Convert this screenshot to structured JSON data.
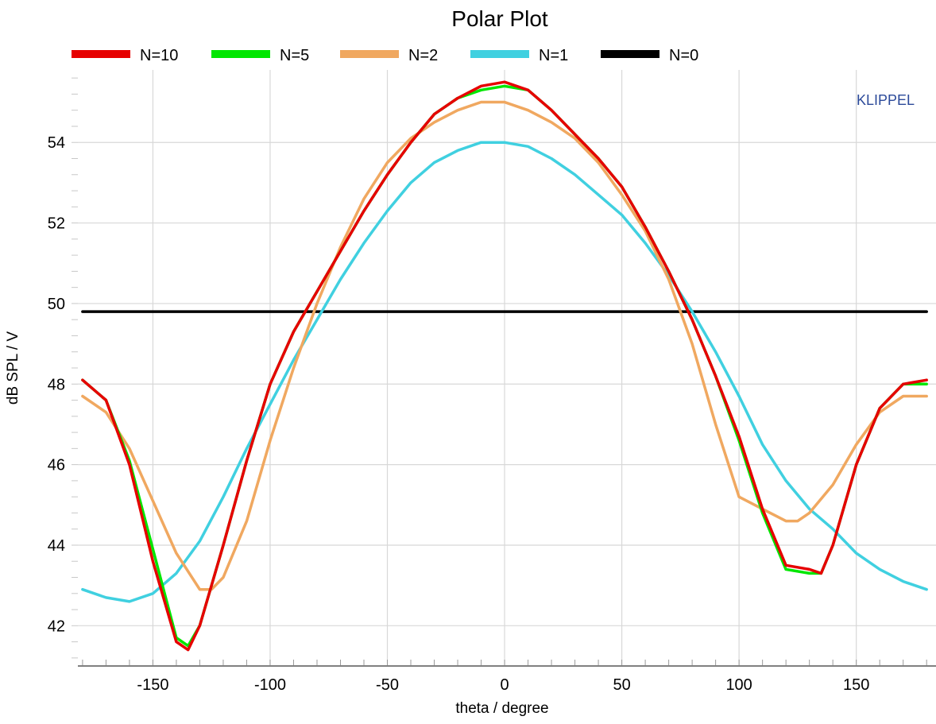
{
  "chart_data": {
    "type": "line",
    "title": "Polar Plot",
    "xlabel": "theta / degree",
    "ylabel": "dB SPL / V",
    "watermark": "KLIPPEL",
    "xlim": [
      -182,
      184
    ],
    "ylim": [
      41.0,
      55.8
    ],
    "xticks": [
      -150,
      -100,
      -50,
      0,
      50,
      100,
      150
    ],
    "xtick_labels": [
      "-150",
      "-100",
      "-50",
      "0",
      "50",
      "100",
      "150"
    ],
    "yticks": [
      42,
      44,
      46,
      48,
      50,
      52,
      54
    ],
    "ytick_labels": [
      "42",
      "44",
      "46",
      "48",
      "50",
      "52",
      "54"
    ],
    "grid": true,
    "legend_position": "top",
    "colors": {
      "N=10": "#e60000",
      "N=5": "#00e600",
      "N=2": "#f0a860",
      "N=1": "#40d0e0",
      "N=0": "#000000"
    },
    "series": [
      {
        "name": "N=10",
        "x": [
          -180,
          -170,
          -160,
          -150,
          -140,
          -135,
          -130,
          -120,
          -110,
          -100,
          -90,
          -80,
          -70,
          -60,
          -50,
          -40,
          -30,
          -20,
          -10,
          0,
          10,
          20,
          30,
          40,
          50,
          60,
          70,
          80,
          90,
          100,
          110,
          120,
          130,
          135,
          140,
          150,
          160,
          170,
          180
        ],
        "y": [
          48.1,
          47.6,
          46.0,
          43.6,
          41.6,
          41.4,
          42.0,
          44.0,
          46.1,
          48.0,
          49.3,
          50.3,
          51.3,
          52.3,
          53.2,
          54.0,
          54.7,
          55.1,
          55.4,
          55.5,
          55.3,
          54.8,
          54.2,
          53.6,
          52.9,
          51.9,
          50.8,
          49.6,
          48.2,
          46.7,
          44.9,
          43.5,
          43.4,
          43.3,
          44.0,
          46.0,
          47.4,
          48.0,
          48.1
        ]
      },
      {
        "name": "N=5",
        "x": [
          -180,
          -170,
          -160,
          -150,
          -140,
          -135,
          -130,
          -120,
          -110,
          -100,
          -90,
          -80,
          -70,
          -60,
          -50,
          -40,
          -30,
          -20,
          -10,
          0,
          10,
          20,
          30,
          40,
          50,
          60,
          70,
          80,
          90,
          100,
          110,
          120,
          130,
          135,
          140,
          150,
          160,
          170,
          180
        ],
        "y": [
          48.1,
          47.6,
          46.1,
          43.9,
          41.7,
          41.5,
          42.0,
          44.0,
          46.1,
          48.0,
          49.3,
          50.3,
          51.3,
          52.3,
          53.2,
          54.0,
          54.7,
          55.1,
          55.3,
          55.4,
          55.3,
          54.8,
          54.2,
          53.6,
          52.9,
          51.9,
          50.8,
          49.6,
          48.2,
          46.6,
          44.8,
          43.4,
          43.3,
          43.3,
          44.0,
          46.0,
          47.4,
          48.0,
          48.0
        ]
      },
      {
        "name": "N=2",
        "x": [
          -180,
          -170,
          -160,
          -150,
          -140,
          -130,
          -125,
          -120,
          -110,
          -100,
          -90,
          -80,
          -70,
          -60,
          -50,
          -40,
          -30,
          -20,
          -10,
          0,
          10,
          20,
          30,
          40,
          50,
          60,
          70,
          80,
          90,
          100,
          110,
          120,
          125,
          130,
          140,
          150,
          160,
          170,
          180
        ],
        "y": [
          47.7,
          47.3,
          46.4,
          45.1,
          43.8,
          42.9,
          42.9,
          43.2,
          44.6,
          46.6,
          48.4,
          50.0,
          51.4,
          52.6,
          53.5,
          54.1,
          54.5,
          54.8,
          55.0,
          55.0,
          54.8,
          54.5,
          54.1,
          53.5,
          52.7,
          51.8,
          50.6,
          49.0,
          47.0,
          45.2,
          44.9,
          44.6,
          44.6,
          44.8,
          45.5,
          46.5,
          47.3,
          47.7,
          47.7
        ]
      },
      {
        "name": "N=1",
        "x": [
          -180,
          -170,
          -160,
          -150,
          -140,
          -130,
          -120,
          -110,
          -100,
          -90,
          -80,
          -70,
          -60,
          -50,
          -40,
          -30,
          -20,
          -10,
          0,
          10,
          20,
          30,
          40,
          50,
          60,
          70,
          80,
          90,
          100,
          110,
          120,
          130,
          140,
          150,
          160,
          170,
          180
        ],
        "y": [
          42.9,
          42.7,
          42.6,
          42.8,
          43.3,
          44.1,
          45.2,
          46.4,
          47.5,
          48.6,
          49.6,
          50.6,
          51.5,
          52.3,
          53.0,
          53.5,
          53.8,
          54.0,
          54.0,
          53.9,
          53.6,
          53.2,
          52.7,
          52.2,
          51.5,
          50.7,
          49.8,
          48.8,
          47.7,
          46.5,
          45.6,
          44.9,
          44.4,
          43.8,
          43.4,
          43.1,
          42.9
        ]
      },
      {
        "name": "N=0",
        "x": [
          -180,
          180
        ],
        "y": [
          49.8,
          49.8
        ]
      }
    ]
  }
}
